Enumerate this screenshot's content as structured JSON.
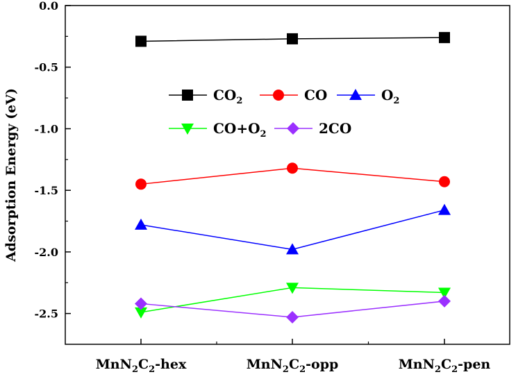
{
  "chart_data": {
    "type": "line",
    "ylabel": "Adsorption Energy (eV)",
    "xlabel": "",
    "ylim": [
      -2.75,
      0.0
    ],
    "yticks": [
      0.0,
      -0.5,
      -1.0,
      -1.5,
      -2.0,
      -2.5
    ],
    "ytick_labels": [
      "0.0",
      "-0.5",
      "-1.0",
      "-1.5",
      "-2.0",
      "-2.5"
    ],
    "categories": [
      {
        "main": "MnN",
        "sub1": "2",
        "mid": "C",
        "sub2": "2",
        "suffix": "-hex"
      },
      {
        "main": "MnN",
        "sub1": "2",
        "mid": "C",
        "sub2": "2",
        "suffix": "-opp"
      },
      {
        "main": "MnN",
        "sub1": "2",
        "mid": "C",
        "sub2": "2",
        "suffix": "-pen"
      }
    ],
    "grid": false,
    "legend_placement": "center",
    "series": [
      {
        "name_main": "CO",
        "name_sub": "2",
        "name_tail": "",
        "color": "#000000",
        "marker": "square",
        "values": [
          -0.29,
          -0.27,
          -0.26
        ]
      },
      {
        "name_main": "CO",
        "name_sub": "",
        "name_tail": "",
        "color": "#ff0000",
        "marker": "circle",
        "values": [
          -1.45,
          -1.32,
          -1.43
        ]
      },
      {
        "name_main": "O",
        "name_sub": "2",
        "name_tail": "",
        "color": "#0000ff",
        "marker": "triangle-up",
        "values": [
          -1.78,
          -1.98,
          -1.66
        ]
      },
      {
        "name_main": "CO+O",
        "name_sub": "2",
        "name_tail": "",
        "color": "#00ff00",
        "marker": "triangle-down",
        "values": [
          -2.49,
          -2.29,
          -2.33
        ]
      },
      {
        "name_main": "2CO",
        "name_sub": "",
        "name_tail": "",
        "color": "#9b30ff",
        "marker": "diamond",
        "values": [
          -2.42,
          -2.53,
          -2.4
        ]
      }
    ]
  }
}
